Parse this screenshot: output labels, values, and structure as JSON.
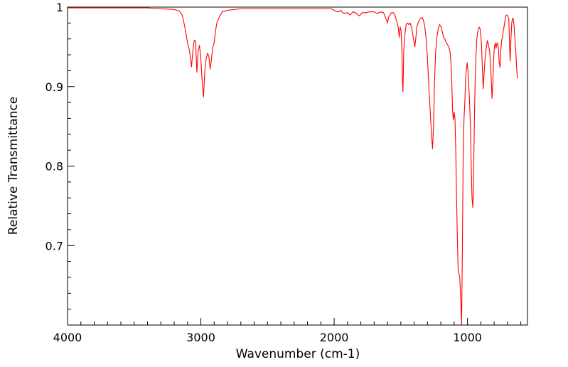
{
  "chart_data": {
    "type": "line",
    "title": "",
    "xlabel": "Wavenumber (cm-1)",
    "ylabel": "Relative Transmittance",
    "xlim": [
      4000,
      550
    ],
    "ylim": [
      0.6,
      1.0
    ],
    "x_reversed": true,
    "grid": false,
    "legend": "none",
    "line_color": "#ff0000",
    "x_ticks": [
      {
        "value": 4000,
        "label": "4000"
      },
      {
        "value": 3000,
        "label": "3000"
      },
      {
        "value": 2000,
        "label": "2000"
      },
      {
        "value": 1000,
        "label": "1000"
      }
    ],
    "y_ticks": [
      {
        "value": 1.0,
        "label": "1"
      },
      {
        "value": 0.9,
        "label": "0.9"
      },
      {
        "value": 0.8,
        "label": "0.8"
      },
      {
        "value": 0.7,
        "label": "0.7"
      }
    ],
    "series": [
      {
        "points": [
          [
            4000,
            0.999
          ],
          [
            3800,
            0.999
          ],
          [
            3600,
            0.999
          ],
          [
            3400,
            0.999
          ],
          [
            3300,
            0.998
          ],
          [
            3200,
            0.997
          ],
          [
            3160,
            0.995
          ],
          [
            3140,
            0.99
          ],
          [
            3120,
            0.975
          ],
          [
            3100,
            0.955
          ],
          [
            3085,
            0.945
          ],
          [
            3070,
            0.925
          ],
          [
            3060,
            0.945
          ],
          [
            3050,
            0.958
          ],
          [
            3040,
            0.958
          ],
          [
            3030,
            0.918
          ],
          [
            3020,
            0.945
          ],
          [
            3010,
            0.952
          ],
          [
            3000,
            0.935
          ],
          [
            2990,
            0.905
          ],
          [
            2980,
            0.887
          ],
          [
            2970,
            0.92
          ],
          [
            2960,
            0.935
          ],
          [
            2950,
            0.942
          ],
          [
            2940,
            0.938
          ],
          [
            2930,
            0.922
          ],
          [
            2920,
            0.935
          ],
          [
            2910,
            0.95
          ],
          [
            2900,
            0.955
          ],
          [
            2890,
            0.97
          ],
          [
            2880,
            0.98
          ],
          [
            2860,
            0.988
          ],
          [
            2840,
            0.994
          ],
          [
            2800,
            0.996
          ],
          [
            2700,
            0.998
          ],
          [
            2600,
            0.998
          ],
          [
            2400,
            0.998
          ],
          [
            2200,
            0.998
          ],
          [
            2020,
            0.998
          ],
          [
            1990,
            0.995
          ],
          [
            1970,
            0.994
          ],
          [
            1950,
            0.996
          ],
          [
            1930,
            0.992
          ],
          [
            1900,
            0.993
          ],
          [
            1880,
            0.99
          ],
          [
            1860,
            0.994
          ],
          [
            1840,
            0.993
          ],
          [
            1820,
            0.99
          ],
          [
            1810,
            0.989
          ],
          [
            1790,
            0.993
          ],
          [
            1760,
            0.993
          ],
          [
            1740,
            0.994
          ],
          [
            1700,
            0.994
          ],
          [
            1680,
            0.992
          ],
          [
            1650,
            0.994
          ],
          [
            1630,
            0.993
          ],
          [
            1610,
            0.985
          ],
          [
            1600,
            0.98
          ],
          [
            1590,
            0.988
          ],
          [
            1570,
            0.993
          ],
          [
            1555,
            0.993
          ],
          [
            1545,
            0.99
          ],
          [
            1530,
            0.982
          ],
          [
            1520,
            0.975
          ],
          [
            1512,
            0.962
          ],
          [
            1505,
            0.975
          ],
          [
            1498,
            0.97
          ],
          [
            1492,
            0.945
          ],
          [
            1488,
            0.91
          ],
          [
            1484,
            0.893
          ],
          [
            1478,
            0.945
          ],
          [
            1470,
            0.965
          ],
          [
            1460,
            0.978
          ],
          [
            1450,
            0.98
          ],
          [
            1440,
            0.978
          ],
          [
            1430,
            0.98
          ],
          [
            1420,
            0.975
          ],
          [
            1410,
            0.965
          ],
          [
            1400,
            0.955
          ],
          [
            1395,
            0.95
          ],
          [
            1388,
            0.96
          ],
          [
            1380,
            0.975
          ],
          [
            1370,
            0.98
          ],
          [
            1360,
            0.984
          ],
          [
            1350,
            0.986
          ],
          [
            1340,
            0.987
          ],
          [
            1330,
            0.983
          ],
          [
            1320,
            0.975
          ],
          [
            1310,
            0.96
          ],
          [
            1300,
            0.935
          ],
          [
            1290,
            0.9
          ],
          [
            1280,
            0.87
          ],
          [
            1270,
            0.84
          ],
          [
            1262,
            0.822
          ],
          [
            1255,
            0.85
          ],
          [
            1248,
            0.9
          ],
          [
            1240,
            0.94
          ],
          [
            1230,
            0.962
          ],
          [
            1220,
            0.972
          ],
          [
            1210,
            0.978
          ],
          [
            1200,
            0.976
          ],
          [
            1190,
            0.97
          ],
          [
            1180,
            0.962
          ],
          [
            1170,
            0.96
          ],
          [
            1160,
            0.955
          ],
          [
            1150,
            0.953
          ],
          [
            1140,
            0.95
          ],
          [
            1130,
            0.943
          ],
          [
            1120,
            0.92
          ],
          [
            1112,
            0.87
          ],
          [
            1106,
            0.858
          ],
          [
            1100,
            0.868
          ],
          [
            1094,
            0.86
          ],
          [
            1088,
            0.82
          ],
          [
            1082,
            0.76
          ],
          [
            1076,
            0.71
          ],
          [
            1070,
            0.668
          ],
          [
            1064,
            0.665
          ],
          [
            1058,
            0.66
          ],
          [
            1050,
            0.63
          ],
          [
            1044,
            0.6
          ],
          [
            1038,
            0.7
          ],
          [
            1032,
            0.82
          ],
          [
            1026,
            0.86
          ],
          [
            1020,
            0.88
          ],
          [
            1014,
            0.91
          ],
          [
            1008,
            0.922
          ],
          [
            1002,
            0.93
          ],
          [
            996,
            0.92
          ],
          [
            990,
            0.9
          ],
          [
            984,
            0.88
          ],
          [
            978,
            0.85
          ],
          [
            972,
            0.8
          ],
          [
            966,
            0.76
          ],
          [
            960,
            0.748
          ],
          [
            954,
            0.79
          ],
          [
            948,
            0.86
          ],
          [
            942,
            0.91
          ],
          [
            936,
            0.94
          ],
          [
            930,
            0.96
          ],
          [
            924,
            0.968
          ],
          [
            918,
            0.973
          ],
          [
            912,
            0.975
          ],
          [
            906,
            0.973
          ],
          [
            900,
            0.965
          ],
          [
            894,
            0.95
          ],
          [
            888,
            0.92
          ],
          [
            882,
            0.897
          ],
          [
            876,
            0.915
          ],
          [
            870,
            0.93
          ],
          [
            864,
            0.943
          ],
          [
            858,
            0.95
          ],
          [
            852,
            0.958
          ],
          [
            846,
            0.955
          ],
          [
            840,
            0.95
          ],
          [
            834,
            0.945
          ],
          [
            828,
            0.93
          ],
          [
            822,
            0.91
          ],
          [
            816,
            0.885
          ],
          [
            810,
            0.903
          ],
          [
            804,
            0.935
          ],
          [
            798,
            0.95
          ],
          [
            792,
            0.955
          ],
          [
            786,
            0.948
          ],
          [
            780,
            0.954
          ],
          [
            774,
            0.955
          ],
          [
            768,
            0.948
          ],
          [
            762,
            0.93
          ],
          [
            756,
            0.924
          ],
          [
            750,
            0.945
          ],
          [
            744,
            0.958
          ],
          [
            738,
            0.962
          ],
          [
            732,
            0.97
          ],
          [
            726,
            0.975
          ],
          [
            720,
            0.982
          ],
          [
            714,
            0.988
          ],
          [
            708,
            0.99
          ],
          [
            702,
            0.99
          ],
          [
            696,
            0.988
          ],
          [
            690,
            0.985
          ],
          [
            684,
            0.95
          ],
          [
            680,
            0.932
          ],
          [
            674,
            0.96
          ],
          [
            668,
            0.98
          ],
          [
            662,
            0.986
          ],
          [
            656,
            0.985
          ],
          [
            650,
            0.975
          ],
          [
            644,
            0.96
          ],
          [
            638,
            0.945
          ],
          [
            632,
            0.925
          ],
          [
            626,
            0.91
          ]
        ]
      }
    ]
  }
}
